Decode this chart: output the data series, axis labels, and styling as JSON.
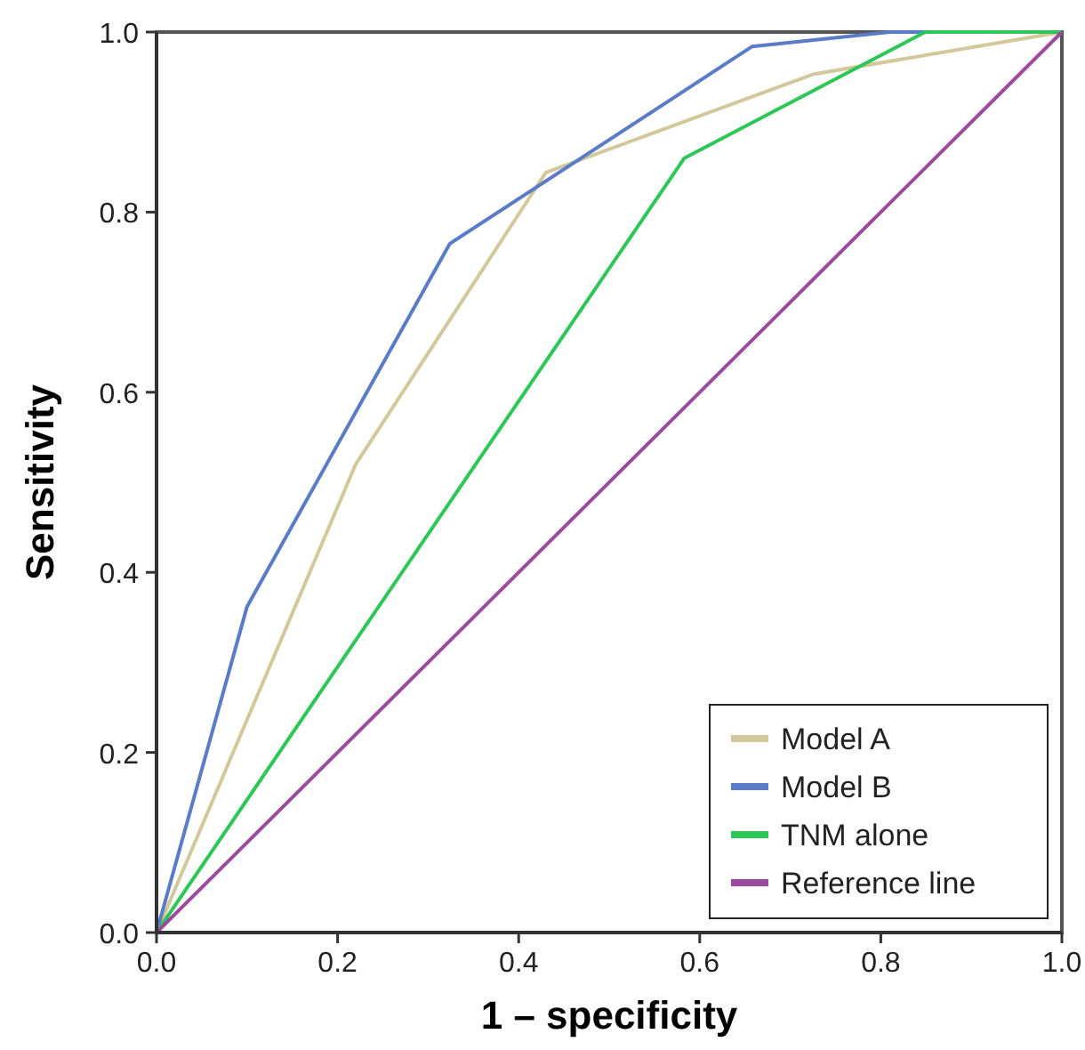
{
  "chart_data": {
    "type": "line",
    "xlabel": "1 – specificity",
    "ylabel": "Sensitivity",
    "xlim": [
      0,
      1
    ],
    "ylim": [
      0,
      1
    ],
    "xticks": [
      {
        "value": 0,
        "label": "0.0"
      },
      0.2,
      0.4,
      0.6,
      0.8,
      {
        "value": 1,
        "label": "1.0"
      }
    ],
    "yticks": [
      {
        "value": 0,
        "label": "0.0"
      },
      0.2,
      0.4,
      0.6,
      0.8,
      {
        "value": 1,
        "label": "1.0"
      }
    ],
    "grid": false,
    "legend": "bottom right",
    "marker": "none",
    "line_style": "solid",
    "series": [
      {
        "name": "Model A",
        "color": "#d2c89b",
        "x": [
          0,
          0.22,
          0.43,
          0.725,
          1
        ],
        "values": [
          0,
          0.52,
          0.844,
          0.953,
          1
        ]
      },
      {
        "name": "Model B",
        "color": "#5a7cc8",
        "x": [
          0,
          0.1,
          0.324,
          0.658,
          0.81,
          1
        ],
        "values": [
          0,
          0.362,
          0.765,
          0.984,
          1,
          1
        ]
      },
      {
        "name": "TNM alone",
        "color": "#2ec757",
        "x": [
          0,
          0.583,
          0.849,
          1
        ],
        "values": [
          0,
          0.86,
          1,
          1
        ]
      },
      {
        "name": "Reference line",
        "color": "#9b4a9e",
        "x": [
          0,
          1
        ],
        "values": [
          0,
          1
        ]
      }
    ]
  }
}
